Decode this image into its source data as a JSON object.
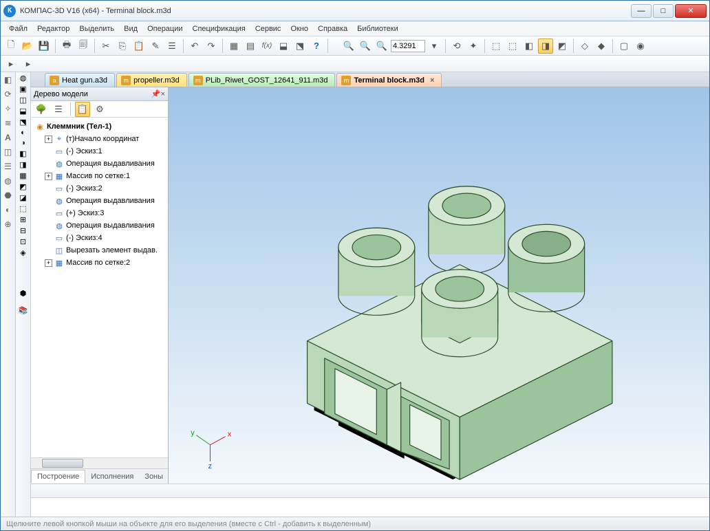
{
  "window": {
    "title": "КОМПАС-3D V16  (x64) - Terminal block.m3d"
  },
  "menu": {
    "items": [
      "Файл",
      "Редактор",
      "Выделить",
      "Вид",
      "Операции",
      "Спецификация",
      "Сервис",
      "Окно",
      "Справка",
      "Библиотеки"
    ]
  },
  "toolbar": {
    "zoom_value": "4.3291"
  },
  "tabs": [
    {
      "label": "Heat gun.a3d",
      "cls": "t1"
    },
    {
      "label": "propeller.m3d",
      "cls": "t2"
    },
    {
      "label": "PLib_Riwet_GOST_12641_911.m3d",
      "cls": "t3"
    },
    {
      "label": "Terminal block.m3d",
      "cls": "t4",
      "active": true
    }
  ],
  "tree": {
    "title": "Дерево модели",
    "root": "Клеммник (Тел-1)",
    "nodes": [
      {
        "exp": "+",
        "icon": "⌖",
        "label": "(т)Начало координат"
      },
      {
        "exp": "",
        "icon": "▭",
        "label": "(-) Эскиз:1"
      },
      {
        "exp": "",
        "icon": "◍",
        "label": "Операция выдавливания"
      },
      {
        "exp": "+",
        "icon": "▦",
        "label": "Массив по сетке:1"
      },
      {
        "exp": "",
        "icon": "▭",
        "label": "(-) Эскиз:2"
      },
      {
        "exp": "",
        "icon": "◍",
        "label": "Операция выдавливания"
      },
      {
        "exp": "",
        "icon": "▭",
        "label": "(+) Эскиз:3"
      },
      {
        "exp": "",
        "icon": "◍",
        "label": "Операция выдавливания"
      },
      {
        "exp": "",
        "icon": "▭",
        "label": "(-) Эскиз:4"
      },
      {
        "exp": "",
        "icon": "◫",
        "label": "Вырезать элемент выдав."
      },
      {
        "exp": "+",
        "icon": "▦",
        "label": "Массив по сетке:2"
      }
    ],
    "tabs": [
      "Построение",
      "Исполнения",
      "Зоны"
    ]
  },
  "status": {
    "text": "Щелкните левой кнопкой мыши на объекте для его выделения (вместе с Ctrl - добавить к выделенным)"
  },
  "model": {
    "fill_light": "#d4e8d4",
    "fill_mid": "#b8d8b8",
    "fill_dark": "#9cc49c",
    "edge": "#305030"
  }
}
